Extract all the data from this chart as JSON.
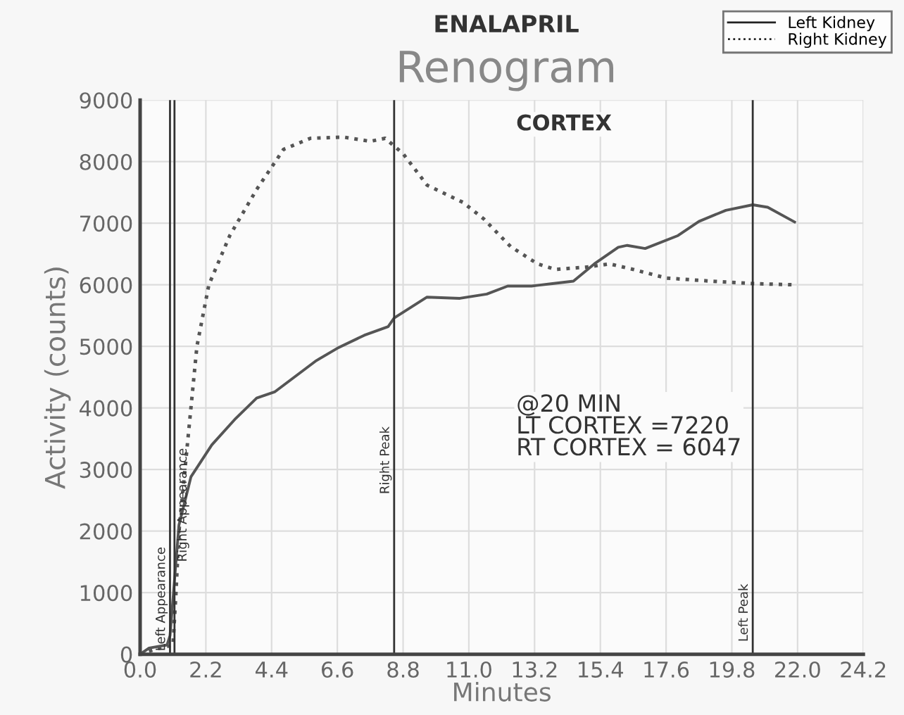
{
  "chart_data": {
    "type": "line",
    "title": "ENALAPRIL",
    "subtitle": "Renogram",
    "xlabel": "Minutes",
    "ylabel": "Activity (counts)",
    "annotations": [
      "CORTEX",
      "@20 MIN\nLT CORTEX =7220\nRT CORTEX = 6047"
    ],
    "xlim": [
      0,
      24.2
    ],
    "xticks": [
      {
        "value": 0,
        "label": "0.0"
      },
      {
        "value": 2.2,
        "label": "2.2"
      },
      {
        "value": 4.4,
        "label": "4.4"
      },
      {
        "value": 6.6,
        "label": "6.6"
      },
      {
        "value": 8.8,
        "label": "8.8"
      },
      {
        "value": 11,
        "label": "11.0"
      },
      {
        "value": 13.2,
        "label": "13.2"
      },
      {
        "value": 15.4,
        "label": "15.4"
      },
      {
        "value": 17.6,
        "label": "17.6"
      },
      {
        "value": 19.8,
        "label": "19.8"
      },
      {
        "value": 22,
        "label": "22.0"
      },
      {
        "value": 24.2,
        "label": "24.2"
      }
    ],
    "ylim": [
      0,
      9000
    ],
    "yticks": [
      0,
      1000,
      2000,
      3000,
      4000,
      5000,
      6000,
      7000,
      8000,
      9000
    ],
    "grid": true,
    "legend": "top right",
    "marker": "none",
    "ref_lines": [
      {
        "axis": "x",
        "value": 1.0,
        "label": "Left Appearance",
        "color": "#333333"
      },
      {
        "axis": "x",
        "value": 1.15,
        "label": "Right Appearance",
        "color": "#333333"
      },
      {
        "axis": "x",
        "value": 8.5,
        "label": "Right Peak",
        "color": "#333333"
      },
      {
        "axis": "x",
        "value": 20.5,
        "label": "Left Peak",
        "color": "#333333"
      }
    ],
    "series": [
      {
        "name": "Left Kidney",
        "color": "#555555",
        "line_style": "solid",
        "x": [
          0,
          0.3,
          0.9,
          1.0,
          1.2,
          1.3,
          1.7,
          2.4,
          3.2,
          3.9,
          4.5,
          5.9,
          6.6,
          7.5,
          8.3,
          8.5,
          9.6,
          10.7,
          11.6,
          12.3,
          13.1,
          13.8,
          14.5,
          15.2,
          16.0,
          16.3,
          16.9,
          18.0,
          18.7,
          19.6,
          20.5,
          21.0,
          21.9
        ],
        "values": [
          0,
          100,
          150,
          300,
          1500,
          2100,
          2880,
          3400,
          3830,
          4160,
          4260,
          4770,
          4970,
          5180,
          5320,
          5460,
          5800,
          5780,
          5850,
          5980,
          5980,
          6020,
          6060,
          6340,
          6610,
          6640,
          6590,
          6800,
          7030,
          7210,
          7300,
          7260,
          7020
        ]
      },
      {
        "name": "Right Kidney",
        "color": "#555555",
        "line_style": "dotted",
        "x": [
          0,
          0.5,
          1.1,
          1.2,
          1.3,
          1.5,
          1.7,
          1.9,
          2.3,
          3.0,
          3.9,
          4.8,
          5.7,
          6.8,
          7.7,
          8.2,
          8.8,
          9.6,
          10.8,
          11.5,
          12.4,
          13.3,
          13.9,
          15.0,
          15.7,
          16.5,
          17.6,
          19.1,
          20.5,
          21.9
        ],
        "values": [
          0,
          80,
          150,
          1000,
          2000,
          3000,
          4000,
          5000,
          6000,
          6800,
          7550,
          8200,
          8380,
          8400,
          8330,
          8380,
          8130,
          7620,
          7340,
          7070,
          6620,
          6340,
          6250,
          6290,
          6340,
          6250,
          6110,
          6060,
          6020,
          6000
        ]
      }
    ]
  }
}
